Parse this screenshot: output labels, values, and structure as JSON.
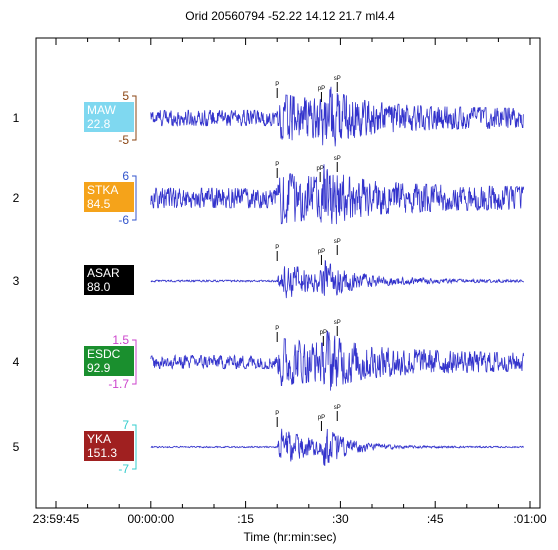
{
  "chart_data": {
    "type": "line",
    "title": "Orid 20560794 -52.22 14.12 21.7 ml4.4",
    "xlabel": "Time (hr:min:sec)",
    "x_tick_labels": [
      "23:59:45",
      "00:00:00",
      ":15",
      ":30",
      ":45",
      ":01:00"
    ],
    "x_tick_seconds": [
      -15,
      0,
      15,
      30,
      45,
      60
    ],
    "xlim_seconds": [
      -15,
      60
    ],
    "trace_color": "#3333cc",
    "phase_markers": [
      "P",
      "pP",
      "sP"
    ],
    "traces": [
      {
        "row": "1",
        "station": "MAW",
        "distance": "22.8",
        "box_color": "#7fd8f0",
        "amp_top": "5",
        "amp_bottom": "-5",
        "amp_color": "#8b4513",
        "p_time": 20.0,
        "pp_time": 27.0,
        "sp_time": 29.5,
        "noise": 0.35,
        "signal": 0.75,
        "burst": 1.0,
        "decay": 18
      },
      {
        "row": "2",
        "station": "STKA",
        "distance": "84.5",
        "box_color": "#f5a31a",
        "amp_top": "6",
        "amp_bottom": "-6",
        "amp_color": "#3355cc",
        "p_time": 20.0,
        "pp_time": 26.8,
        "sp_time": 29.5,
        "noise": 0.45,
        "signal": 0.75,
        "burst": 0.75,
        "decay": 16
      },
      {
        "row": "3",
        "station": "ASAR",
        "distance": "88.0",
        "box_color": "#000000",
        "amp_top": "",
        "amp_bottom": "",
        "amp_color": "#000000",
        "p_time": 20.0,
        "pp_time": 27.0,
        "sp_time": 29.5,
        "noise": 0.04,
        "signal": 0.85,
        "burst": 0.6,
        "decay": 10
      },
      {
        "row": "4",
        "station": "ESDC",
        "distance": "92.9",
        "box_color": "#1a8f2e",
        "amp_top": "1.5",
        "amp_bottom": "-1.7",
        "amp_color": "#cc44cc",
        "p_time": 20.0,
        "pp_time": 27.3,
        "sp_time": 29.5,
        "noise": 0.3,
        "signal": 0.8,
        "burst": 0.7,
        "decay": 20
      },
      {
        "row": "5",
        "station": "YKA",
        "distance": "151.3",
        "box_color": "#a02020",
        "amp_top": "7",
        "amp_bottom": "-7",
        "amp_color": "#33cccc",
        "p_time": 20.0,
        "pp_time": 27.0,
        "sp_time": 29.5,
        "noise": 0.03,
        "signal": 0.9,
        "burst": 0.75,
        "decay": 6
      }
    ]
  }
}
